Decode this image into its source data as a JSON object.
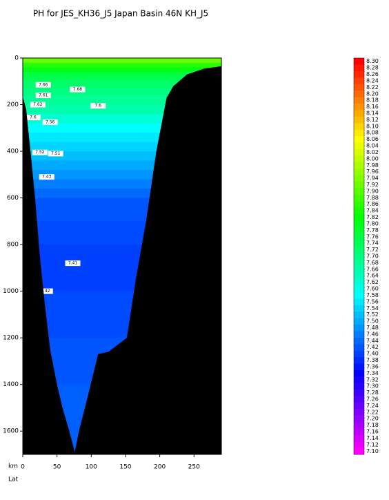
{
  "chart_data": {
    "type": "section",
    "title": "PH for JES_KH36_J5 Japan Basin 46N KH_J5",
    "x_label": "km",
    "x2_label": "Lat",
    "xlim": [
      0,
      290
    ],
    "xticks": [
      0,
      50,
      100,
      150,
      200,
      250
    ],
    "ylim": [
      0,
      1700
    ],
    "yticks": [
      0,
      200,
      400,
      600,
      800,
      1000,
      1200,
      1400,
      1600
    ],
    "profile": {
      "depth": [
        0,
        20,
        40,
        60,
        80,
        100,
        130,
        160,
        200,
        240,
        280,
        320,
        360,
        400,
        440,
        480,
        520,
        560,
        600,
        700,
        800,
        900,
        1000,
        1100,
        1200,
        1300,
        1400,
        1500,
        1600
      ],
      "values": [
        7.92,
        7.86,
        7.8,
        7.76,
        7.74,
        7.72,
        7.7,
        7.68,
        7.66,
        7.62,
        7.58,
        7.56,
        7.54,
        7.52,
        7.5,
        7.48,
        7.46,
        7.44,
        7.42,
        7.41,
        7.4,
        7.4,
        7.41,
        7.41,
        7.42,
        7.42,
        7.43,
        7.43,
        7.43
      ]
    },
    "bottom": {
      "x": [
        0,
        0,
        5,
        12,
        18,
        25,
        32,
        40,
        50,
        58,
        68,
        76,
        82,
        95,
        110,
        125,
        152,
        165,
        180,
        195,
        210,
        220,
        240,
        265,
        290,
        290
      ],
      "depth": [
        1700,
        165,
        220,
        420,
        600,
        850,
        1050,
        1250,
        1400,
        1500,
        1600,
        1690,
        1600,
        1450,
        1270,
        1260,
        1200,
        950,
        700,
        400,
        170,
        120,
        70,
        45,
        35,
        1700
      ]
    },
    "contour_labels": [
      {
        "x": 30,
        "y": 115,
        "value": 7.66
      },
      {
        "x": 80,
        "y": 135,
        "value": 7.68
      },
      {
        "x": 30,
        "y": 160,
        "value": 7.61
      },
      {
        "x": 22,
        "y": 200,
        "value": 7.62
      },
      {
        "x": 110,
        "y": 205,
        "value": 7.6
      },
      {
        "x": 15,
        "y": 255,
        "value": 7.6
      },
      {
        "x": 40,
        "y": 275,
        "value": 7.56
      },
      {
        "x": 25,
        "y": 405,
        "value": 7.52
      },
      {
        "x": 48,
        "y": 410,
        "value": 7.51
      },
      {
        "x": 35,
        "y": 510,
        "value": 7.43
      },
      {
        "x": 73,
        "y": 880,
        "value": 7.41
      },
      {
        "x": 33,
        "y": 1000,
        "value": 7.42
      }
    ],
    "colorbar": {
      "lim": [
        7.1,
        8.3
      ],
      "ticks": [
        {
          "value": 7.1,
          "label": "7.10"
        },
        {
          "value": 7.12,
          "label": "7.12"
        },
        {
          "value": 7.14,
          "label": "7.14"
        },
        {
          "value": 7.16,
          "label": "7.16"
        },
        {
          "value": 7.18,
          "label": "7.18"
        },
        {
          "value": 7.2,
          "label": "7.20"
        },
        {
          "value": 7.22,
          "label": "7.22"
        },
        {
          "value": 7.24,
          "label": "7.24"
        },
        {
          "value": 7.26,
          "label": "7.26"
        },
        {
          "value": 7.28,
          "label": "7.28"
        },
        {
          "value": 7.3,
          "label": "7.30"
        },
        {
          "value": 7.32,
          "label": "7.32"
        },
        {
          "value": 7.34,
          "label": "7.34"
        },
        {
          "value": 7.36,
          "label": "7.36"
        },
        {
          "value": 7.38,
          "label": "7.38"
        },
        {
          "value": 7.4,
          "label": "7.40"
        },
        {
          "value": 7.42,
          "label": "7.42"
        },
        {
          "value": 7.44,
          "label": "7.44"
        },
        {
          "value": 7.46,
          "label": "7.46"
        },
        {
          "value": 7.48,
          "label": "7.48"
        },
        {
          "value": 7.5,
          "label": "7.50"
        },
        {
          "value": 7.52,
          "label": "7.52"
        },
        {
          "value": 7.54,
          "label": "7.54"
        },
        {
          "value": 7.56,
          "label": "7.56"
        },
        {
          "value": 7.58,
          "label": "7.58"
        },
        {
          "value": 7.6,
          "label": "7.60"
        },
        {
          "value": 7.62,
          "label": "7.62"
        },
        {
          "value": 7.64,
          "label": "7.64"
        },
        {
          "value": 7.66,
          "label": "7.66"
        },
        {
          "value": 7.68,
          "label": "7.68"
        },
        {
          "value": 7.7,
          "label": "7.70"
        },
        {
          "value": 7.72,
          "label": "7.72"
        },
        {
          "value": 7.74,
          "label": "7.74"
        },
        {
          "value": 7.76,
          "label": "7.76"
        },
        {
          "value": 7.78,
          "label": "7.78"
        },
        {
          "value": 7.8,
          "label": "7.80"
        },
        {
          "value": 7.82,
          "label": "7.82"
        },
        {
          "value": 7.84,
          "label": "7.84"
        },
        {
          "value": 7.86,
          "label": "7.86"
        },
        {
          "value": 7.88,
          "label": "7.88"
        },
        {
          "value": 7.9,
          "label": "7.90"
        },
        {
          "value": 7.92,
          "label": "7.92"
        },
        {
          "value": 7.94,
          "label": "7.94"
        },
        {
          "value": 7.96,
          "label": "7.96"
        },
        {
          "value": 7.98,
          "label": "7.98"
        },
        {
          "value": 8.0,
          "label": "8.00"
        },
        {
          "value": 8.02,
          "label": "8.02"
        },
        {
          "value": 8.04,
          "label": "8.04"
        },
        {
          "value": 8.06,
          "label": "8.06"
        },
        {
          "value": 8.08,
          "label": "8.08"
        },
        {
          "value": 8.1,
          "label": "8.10"
        },
        {
          "value": 8.12,
          "label": "8.12"
        },
        {
          "value": 8.14,
          "label": "8.14"
        },
        {
          "value": 8.16,
          "label": "8.16"
        },
        {
          "value": 8.18,
          "label": "8.18"
        },
        {
          "value": 8.2,
          "label": "8.20"
        },
        {
          "value": 8.22,
          "label": "8.22"
        },
        {
          "value": 8.24,
          "label": "8.24"
        },
        {
          "value": 8.26,
          "label": "8.26"
        },
        {
          "value": 8.28,
          "label": "8.28"
        },
        {
          "value": 8.3,
          "label": "8.30"
        }
      ]
    },
    "bottom_color": "#000000"
  }
}
